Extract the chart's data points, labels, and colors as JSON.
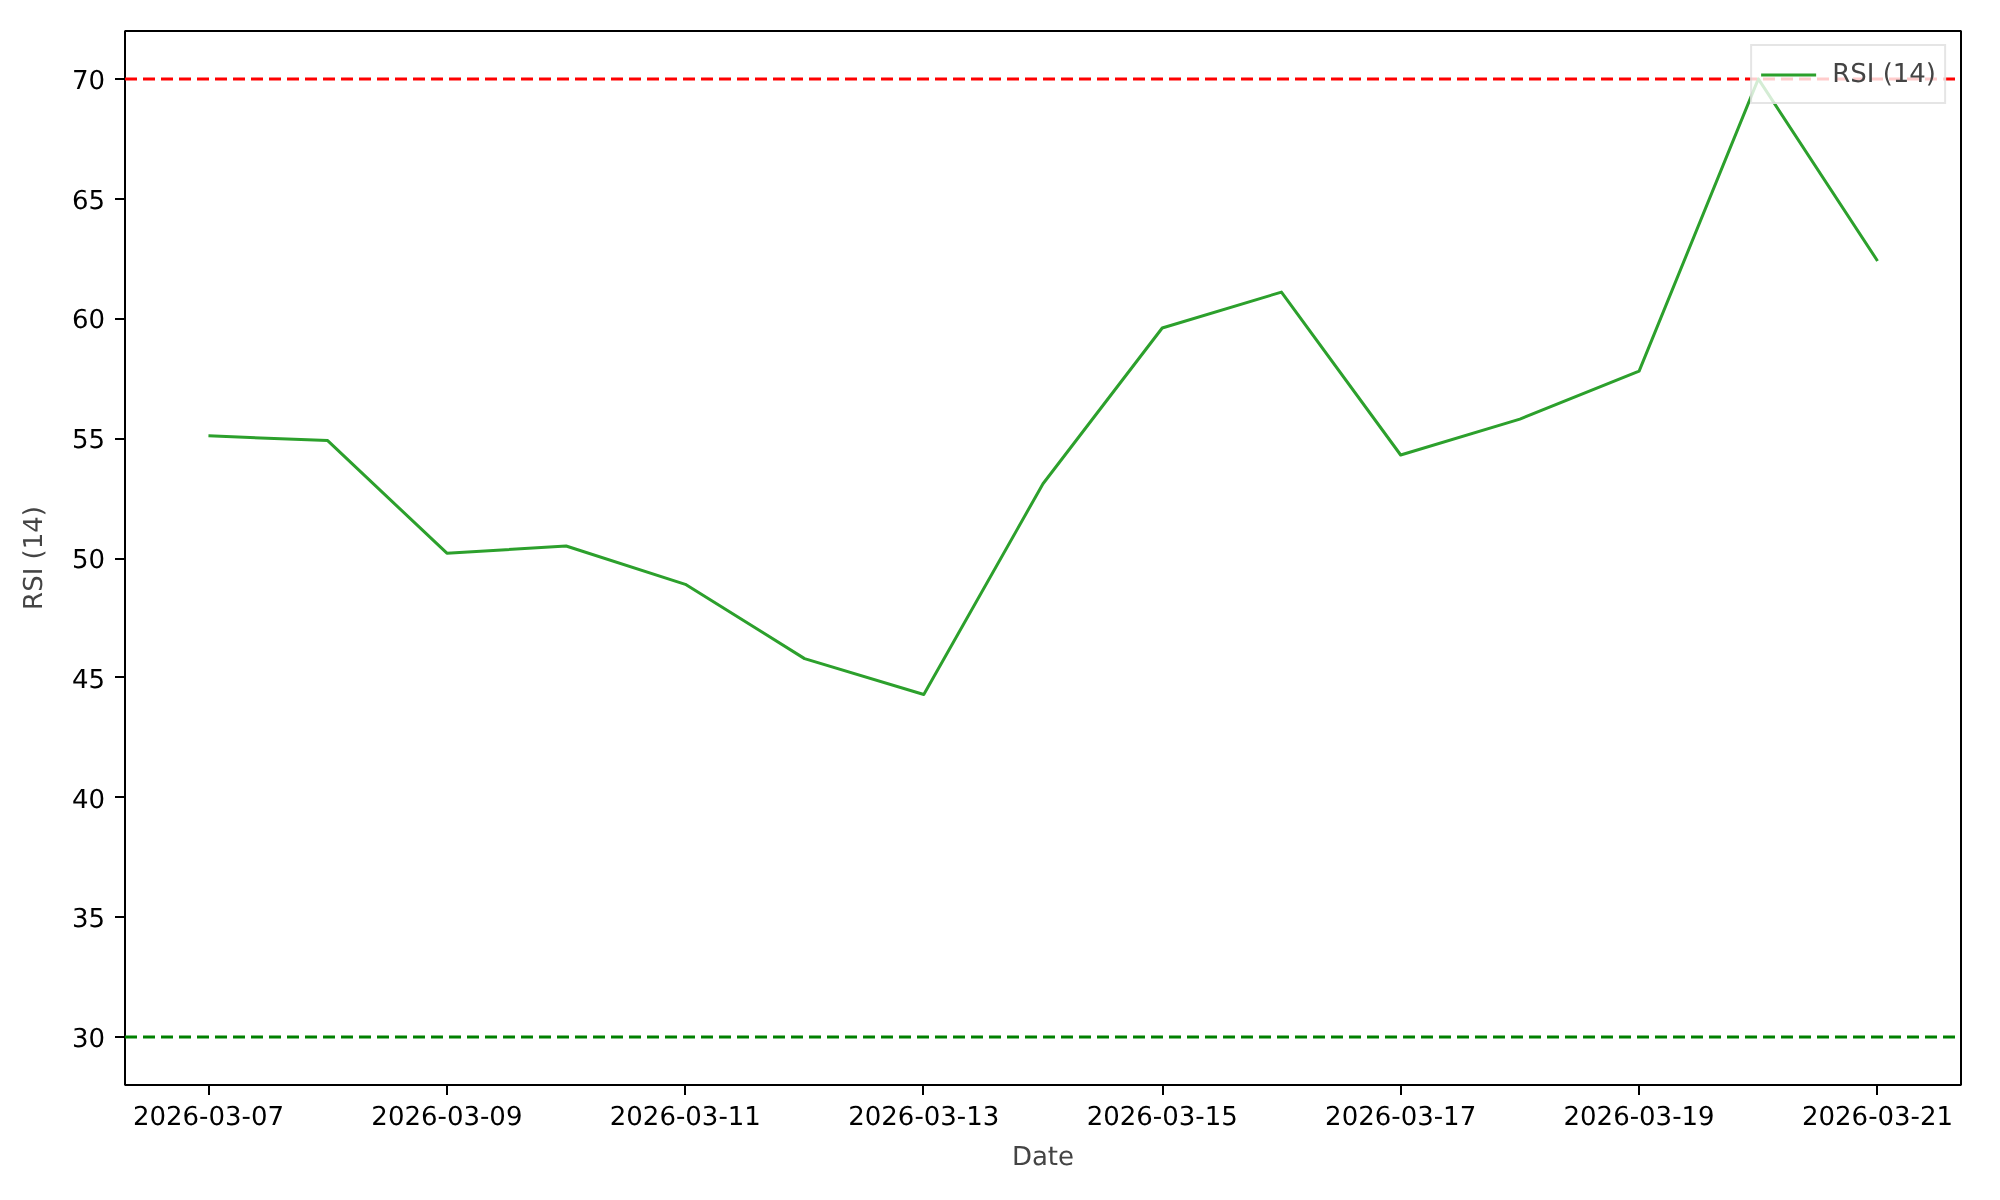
{
  "chart_data": {
    "type": "line",
    "xlabel": "Date",
    "ylabel": "RSI (14)",
    "x": [
      "2026-03-07",
      "2026-03-08",
      "2026-03-09",
      "2026-03-10",
      "2026-03-11",
      "2026-03-12",
      "2026-03-13",
      "2026-03-14",
      "2026-03-15",
      "2026-03-16",
      "2026-03-17",
      "2026-03-18",
      "2026-03-19",
      "2026-03-20",
      "2026-03-21"
    ],
    "series": [
      {
        "name": "RSI (14)",
        "color": "#2ca02c",
        "values": [
          55.1,
          54.9,
          50.2,
          50.5,
          48.9,
          45.8,
          44.3,
          53.1,
          59.6,
          61.1,
          54.3,
          55.8,
          57.8,
          70.0,
          62.4
        ]
      }
    ],
    "xlim": [
      "2026-03-06T07:12",
      "2026-03-21T16:48"
    ],
    "xticks": [
      "2026-03-07",
      "2026-03-09",
      "2026-03-11",
      "2026-03-13",
      "2026-03-15",
      "2026-03-17",
      "2026-03-19",
      "2026-03-21"
    ],
    "ylim": [
      28,
      72
    ],
    "yticks": [
      30,
      35,
      40,
      45,
      50,
      55,
      60,
      65,
      70
    ],
    "ref_lines": [
      {
        "axis": "y",
        "value": 70,
        "color": "#ff0000",
        "line_style": "dashed"
      },
      {
        "axis": "y",
        "value": 30,
        "color": "#008000",
        "line_style": "dashed"
      }
    ],
    "grid": false,
    "legend": "top right"
  }
}
